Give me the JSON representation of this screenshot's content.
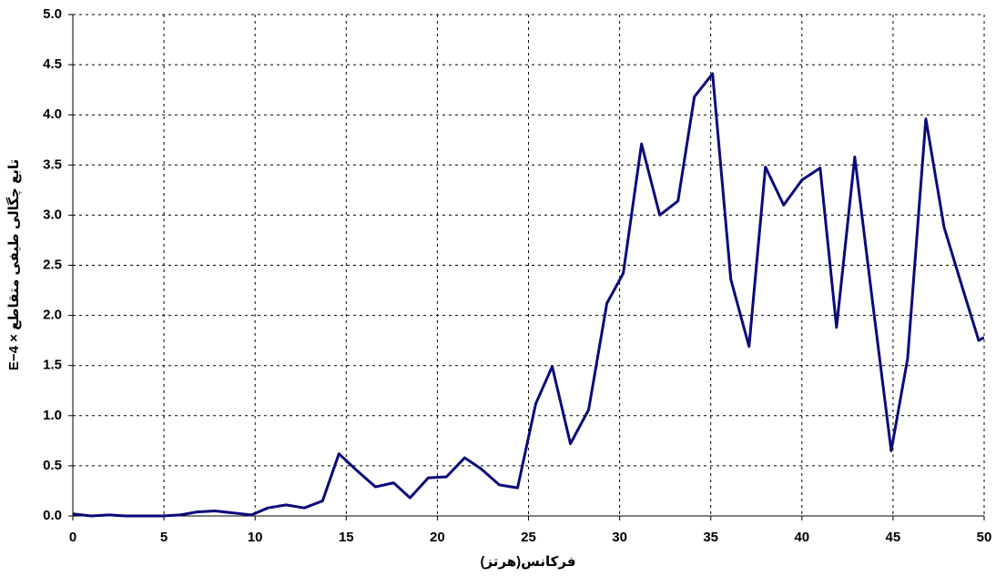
{
  "chart_data": {
    "type": "line",
    "x_label": "فرکانس(هرتز)",
    "y_label": "تابع چگالی طیفی متقاطع × E−4",
    "x": [
      0,
      1.0,
      2.0,
      2.9,
      3.9,
      4.9,
      5.9,
      6.8,
      7.8,
      8.8,
      9.8,
      10.7,
      11.7,
      12.7,
      13.7,
      14.6,
      15.6,
      16.6,
      17.6,
      18.5,
      19.5,
      20.5,
      21.5,
      22.4,
      23.4,
      24.4,
      25.4,
      26.3,
      27.3,
      28.3,
      29.3,
      30.2,
      31.2,
      32.2,
      33.2,
      34.1,
      35.1,
      36.1,
      37.1,
      38.0,
      39.0,
      40.0,
      41.0,
      41.9,
      42.9,
      43.9,
      44.9,
      45.8,
      46.8,
      47.8,
      48.8,
      49.7,
      50.0
    ],
    "series": [
      {
        "color": "#0a0a7a",
        "values": [
          0.02,
          0,
          0.01,
          0,
          0,
          0,
          0.01,
          0.04,
          0.05,
          0.03,
          0.01,
          0.08,
          0.11,
          0.08,
          0.15,
          0.62,
          0.45,
          0.29,
          0.33,
          0.18,
          0.38,
          0.39,
          0.58,
          0.47,
          0.31,
          0.28,
          1.12,
          1.49,
          0.72,
          1.06,
          2.12,
          2.42,
          3.71,
          3.0,
          3.14,
          4.18,
          4.41,
          2.36,
          1.69,
          3.48,
          3.1,
          3.35,
          3.47,
          1.88,
          3.58,
          2.1,
          0.65,
          1.57,
          3.96,
          2.88,
          2.28,
          1.75,
          1.78
        ]
      }
    ],
    "xlim": [
      0,
      50
    ],
    "xticks": [
      0,
      5,
      10,
      15,
      20,
      25,
      30,
      35,
      40,
      45,
      50
    ],
    "ylim": [
      0,
      5
    ],
    "yticks": [
      {
        "value": 0,
        "label": "0.0"
      },
      {
        "value": 0.5,
        "label": "0.5"
      },
      {
        "value": 1,
        "label": "1.0"
      },
      {
        "value": 1.5,
        "label": "1.5"
      },
      {
        "value": 2,
        "label": "2.0"
      },
      {
        "value": 2.5,
        "label": "2.5"
      },
      {
        "value": 3,
        "label": "3.0"
      },
      {
        "value": 3.5,
        "label": "3.5"
      },
      {
        "value": 4,
        "label": "4.0"
      },
      {
        "value": 4.5,
        "label": "4.5"
      },
      {
        "value": 5,
        "label": "5.0"
      }
    ],
    "grid": true
  }
}
